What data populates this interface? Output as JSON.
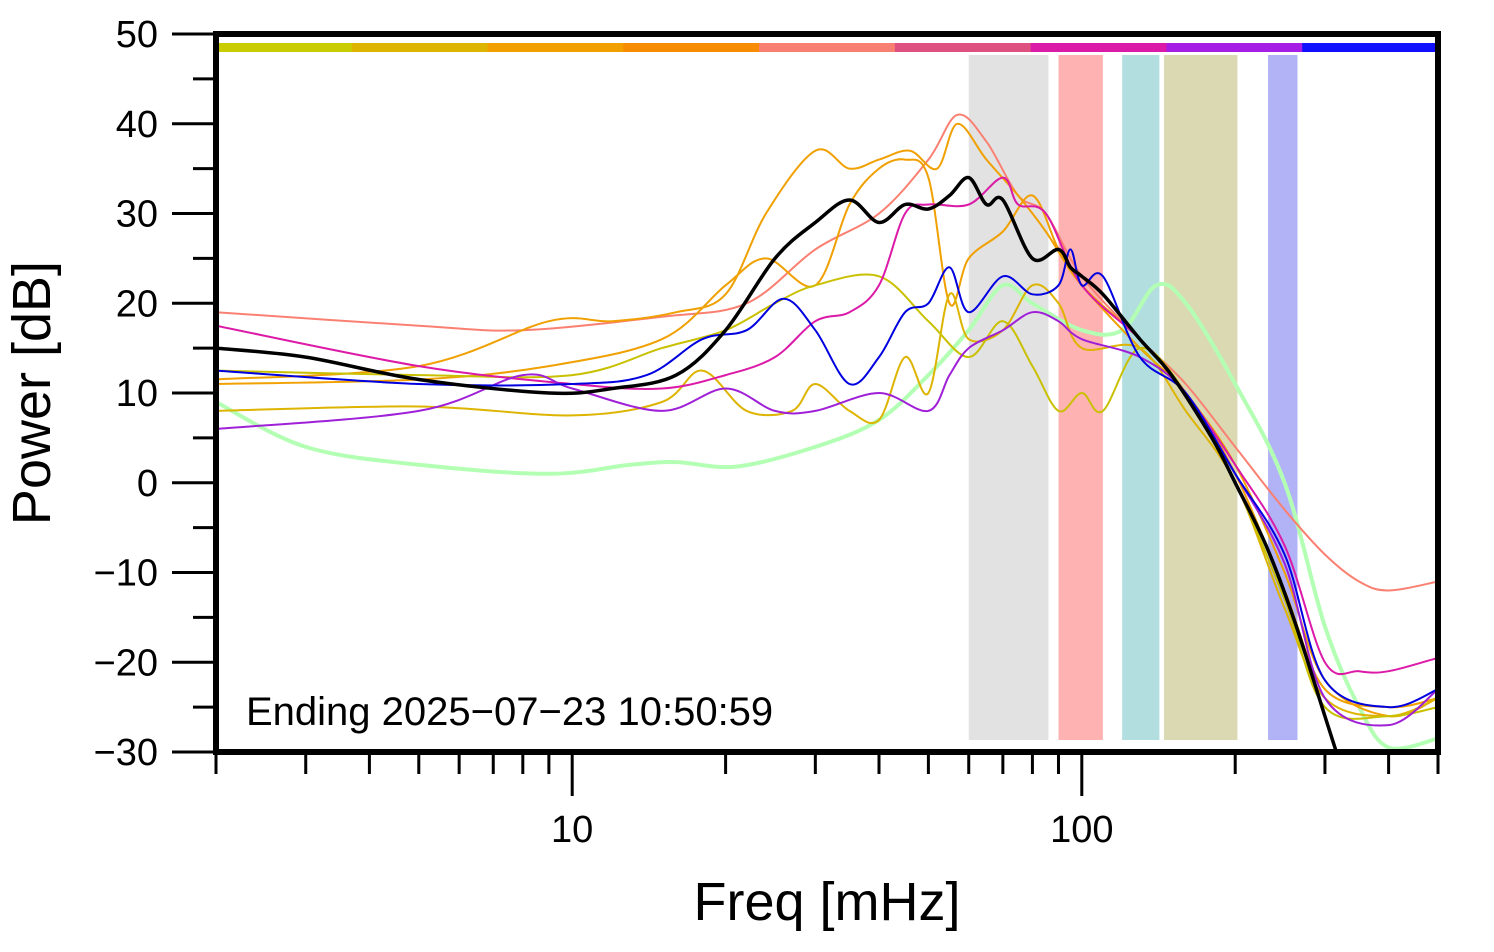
{
  "chart_data": {
    "type": "line",
    "xlabel": "Freq [mHz]",
    "ylabel": "Power [dB]",
    "x_scale": "log",
    "xlim": [
      2,
      500
    ],
    "ylim": [
      -30,
      50
    ],
    "x_tick_labels": [
      "10",
      "100"
    ],
    "y_ticks": [
      50,
      40,
      30,
      20,
      10,
      0,
      -10,
      -20,
      -30
    ],
    "y_tick_labels": [
      "50",
      "40",
      "30",
      "20",
      "10",
      "0",
      "−10",
      "−20",
      "−30"
    ],
    "annotation": "Ending 2025−07−23 10:50:59",
    "grid": false,
    "legend": "none",
    "top_color_bar": [
      "#c9cc00",
      "#ddb400",
      "#f2a000",
      "#f78c00",
      "#f88072",
      "#dd5080",
      "#dc1aa8",
      "#a61ee6",
      "#1010ff"
    ],
    "bands": [
      {
        "x0": 60,
        "x1": 86,
        "color": "#e2e2e2"
      },
      {
        "x0": 90,
        "x1": 110,
        "color": "#ffb2b2"
      },
      {
        "x0": 120,
        "x1": 142,
        "color": "#b2dedf"
      },
      {
        "x0": 145,
        "x1": 202,
        "color": "#dad9b2"
      },
      {
        "x0": 232,
        "x1": 265,
        "color": "#b2b2f6"
      }
    ],
    "series": [
      {
        "color": "#b3ffb3",
        "width": 4,
        "points": [
          [
            2,
            9
          ],
          [
            3,
            4
          ],
          [
            5,
            2
          ],
          [
            9,
            1
          ],
          [
            13,
            2
          ],
          [
            16,
            2.3
          ],
          [
            21,
            1.8
          ],
          [
            30,
            4
          ],
          [
            40,
            7
          ],
          [
            50,
            12
          ],
          [
            60,
            17
          ],
          [
            70,
            22
          ],
          [
            80,
            20
          ],
          [
            100,
            17
          ],
          [
            120,
            17
          ],
          [
            140,
            22
          ],
          [
            160,
            20
          ],
          [
            200,
            11
          ],
          [
            250,
            0
          ],
          [
            300,
            -16
          ],
          [
            350,
            -25
          ],
          [
            400,
            -29.5
          ],
          [
            500,
            -28.5
          ]
        ]
      },
      {
        "color": "#fa8072",
        "width": 2,
        "points": [
          [
            2,
            19
          ],
          [
            5,
            17.5
          ],
          [
            8,
            17
          ],
          [
            15,
            18.5
          ],
          [
            22,
            20
          ],
          [
            30,
            26
          ],
          [
            40,
            30
          ],
          [
            50,
            36
          ],
          [
            57,
            41
          ],
          [
            65,
            38
          ],
          [
            75,
            32
          ],
          [
            85,
            30
          ],
          [
            100,
            23
          ],
          [
            130,
            16
          ],
          [
            160,
            11
          ],
          [
            200,
            4
          ],
          [
            250,
            -3
          ],
          [
            300,
            -8
          ],
          [
            350,
            -11
          ],
          [
            400,
            -12
          ],
          [
            500,
            -11
          ]
        ]
      },
      {
        "color": "#f0a000",
        "width": 2,
        "points": [
          [
            2,
            11.5
          ],
          [
            5,
            13
          ],
          [
            9,
            18
          ],
          [
            12,
            18
          ],
          [
            16,
            19
          ],
          [
            20,
            21
          ],
          [
            24,
            30
          ],
          [
            30,
            37
          ],
          [
            35,
            35
          ],
          [
            40,
            36
          ],
          [
            46,
            37
          ],
          [
            52,
            35
          ],
          [
            57,
            40
          ],
          [
            65,
            36
          ],
          [
            75,
            32
          ],
          [
            85,
            28
          ],
          [
            100,
            22
          ],
          [
            130,
            16
          ],
          [
            160,
            10
          ],
          [
            200,
            2
          ],
          [
            250,
            -10
          ],
          [
            300,
            -22
          ],
          [
            400,
            -26
          ],
          [
            500,
            -24
          ]
        ]
      },
      {
        "color": "#f0a000",
        "width": 2,
        "points": [
          [
            2,
            11
          ],
          [
            5,
            11.5
          ],
          [
            9,
            13
          ],
          [
            15,
            16
          ],
          [
            20,
            22
          ],
          [
            24,
            25
          ],
          [
            30,
            22
          ],
          [
            35,
            31
          ],
          [
            40,
            35
          ],
          [
            45,
            36
          ],
          [
            50,
            34
          ],
          [
            55,
            20
          ],
          [
            60,
            25
          ],
          [
            70,
            28
          ],
          [
            80,
            32
          ],
          [
            90,
            26
          ],
          [
            100,
            22
          ],
          [
            130,
            15
          ],
          [
            160,
            10
          ],
          [
            200,
            1
          ],
          [
            250,
            -12
          ],
          [
            300,
            -23
          ],
          [
            400,
            -25
          ],
          [
            500,
            -24
          ]
        ]
      },
      {
        "color": "#ddb400",
        "width": 2,
        "points": [
          [
            2,
            8
          ],
          [
            5,
            8.5
          ],
          [
            10,
            7.5
          ],
          [
            15,
            9
          ],
          [
            18,
            12.5
          ],
          [
            22,
            8
          ],
          [
            27,
            8
          ],
          [
            30,
            11
          ],
          [
            35,
            8
          ],
          [
            40,
            7
          ],
          [
            45,
            14
          ],
          [
            50,
            10
          ],
          [
            55,
            21
          ],
          [
            60,
            16
          ],
          [
            70,
            17
          ],
          [
            80,
            22
          ],
          [
            90,
            20
          ],
          [
            100,
            15
          ],
          [
            130,
            15
          ],
          [
            160,
            8
          ],
          [
            200,
            0
          ],
          [
            250,
            -14
          ],
          [
            300,
            -24
          ],
          [
            400,
            -26
          ],
          [
            500,
            -24
          ]
        ]
      },
      {
        "color": "#c9c000",
        "width": 2,
        "points": [
          [
            2,
            12.5
          ],
          [
            5,
            12
          ],
          [
            10,
            12
          ],
          [
            15,
            15
          ],
          [
            20,
            17
          ],
          [
            25,
            20
          ],
          [
            30,
            22
          ],
          [
            40,
            23
          ],
          [
            50,
            18
          ],
          [
            60,
            14
          ],
          [
            70,
            18
          ],
          [
            80,
            13
          ],
          [
            90,
            8
          ],
          [
            100,
            10
          ],
          [
            110,
            8
          ],
          [
            130,
            15
          ],
          [
            160,
            10
          ],
          [
            200,
            0
          ],
          [
            250,
            -13
          ],
          [
            300,
            -25
          ],
          [
            400,
            -26
          ],
          [
            500,
            -25
          ]
        ]
      },
      {
        "color": "#dc1aa8",
        "width": 2,
        "points": [
          [
            2,
            17.5
          ],
          [
            5,
            13
          ],
          [
            10,
            11
          ],
          [
            15,
            10.5
          ],
          [
            20,
            12
          ],
          [
            25,
            14
          ],
          [
            30,
            18
          ],
          [
            35,
            19
          ],
          [
            40,
            22
          ],
          [
            45,
            30
          ],
          [
            50,
            31
          ],
          [
            60,
            31
          ],
          [
            70,
            34
          ],
          [
            75,
            31
          ],
          [
            85,
            30
          ],
          [
            100,
            22
          ],
          [
            130,
            16
          ],
          [
            160,
            10
          ],
          [
            200,
            2
          ],
          [
            250,
            -7
          ],
          [
            300,
            -20
          ],
          [
            350,
            -21
          ],
          [
            400,
            -21
          ],
          [
            500,
            -19.5
          ]
        ]
      },
      {
        "color": "#a020d8",
        "width": 2,
        "points": [
          [
            2,
            6
          ],
          [
            5,
            8
          ],
          [
            8,
            12
          ],
          [
            10,
            10.5
          ],
          [
            15,
            8
          ],
          [
            20,
            10.5
          ],
          [
            25,
            8
          ],
          [
            30,
            8
          ],
          [
            40,
            10
          ],
          [
            50,
            8
          ],
          [
            55,
            12
          ],
          [
            60,
            15
          ],
          [
            70,
            17
          ],
          [
            80,
            19
          ],
          [
            90,
            18
          ],
          [
            100,
            16
          ],
          [
            130,
            14
          ],
          [
            160,
            10
          ],
          [
            200,
            1
          ],
          [
            250,
            -9
          ],
          [
            300,
            -24
          ],
          [
            400,
            -27
          ],
          [
            500,
            -23
          ]
        ]
      },
      {
        "color": "#0000e0",
        "width": 2,
        "points": [
          [
            2,
            12.5
          ],
          [
            5,
            11
          ],
          [
            10,
            11
          ],
          [
            14,
            12
          ],
          [
            18,
            16
          ],
          [
            22,
            17
          ],
          [
            26,
            20.5
          ],
          [
            30,
            17
          ],
          [
            35,
            11
          ],
          [
            40,
            14
          ],
          [
            45,
            19
          ],
          [
            50,
            20
          ],
          [
            55,
            24
          ],
          [
            60,
            19
          ],
          [
            70,
            23
          ],
          [
            80,
            21
          ],
          [
            90,
            22
          ],
          [
            95,
            26
          ],
          [
            100,
            22
          ],
          [
            110,
            23
          ],
          [
            130,
            14
          ],
          [
            160,
            10
          ],
          [
            200,
            1
          ],
          [
            250,
            -8
          ],
          [
            300,
            -22
          ],
          [
            400,
            -25
          ],
          [
            500,
            -23
          ]
        ]
      },
      {
        "color": "#000000",
        "width": 3.5,
        "points": [
          [
            2,
            15
          ],
          [
            3,
            14
          ],
          [
            5,
            11.5
          ],
          [
            9,
            10
          ],
          [
            12,
            10.5
          ],
          [
            16,
            12
          ],
          [
            20,
            17
          ],
          [
            25,
            25
          ],
          [
            30,
            29
          ],
          [
            35,
            31.5
          ],
          [
            40,
            29
          ],
          [
            45,
            31
          ],
          [
            50,
            30.5
          ],
          [
            55,
            32
          ],
          [
            60,
            34
          ],
          [
            65,
            31
          ],
          [
            70,
            31.5
          ],
          [
            80,
            25
          ],
          [
            90,
            26
          ],
          [
            95,
            24
          ],
          [
            100,
            23
          ],
          [
            110,
            21
          ],
          [
            130,
            16
          ],
          [
            150,
            12
          ],
          [
            180,
            5
          ],
          [
            200,
            0
          ],
          [
            230,
            -7
          ],
          [
            260,
            -15
          ],
          [
            300,
            -26
          ],
          [
            320,
            -31
          ]
        ]
      }
    ]
  }
}
